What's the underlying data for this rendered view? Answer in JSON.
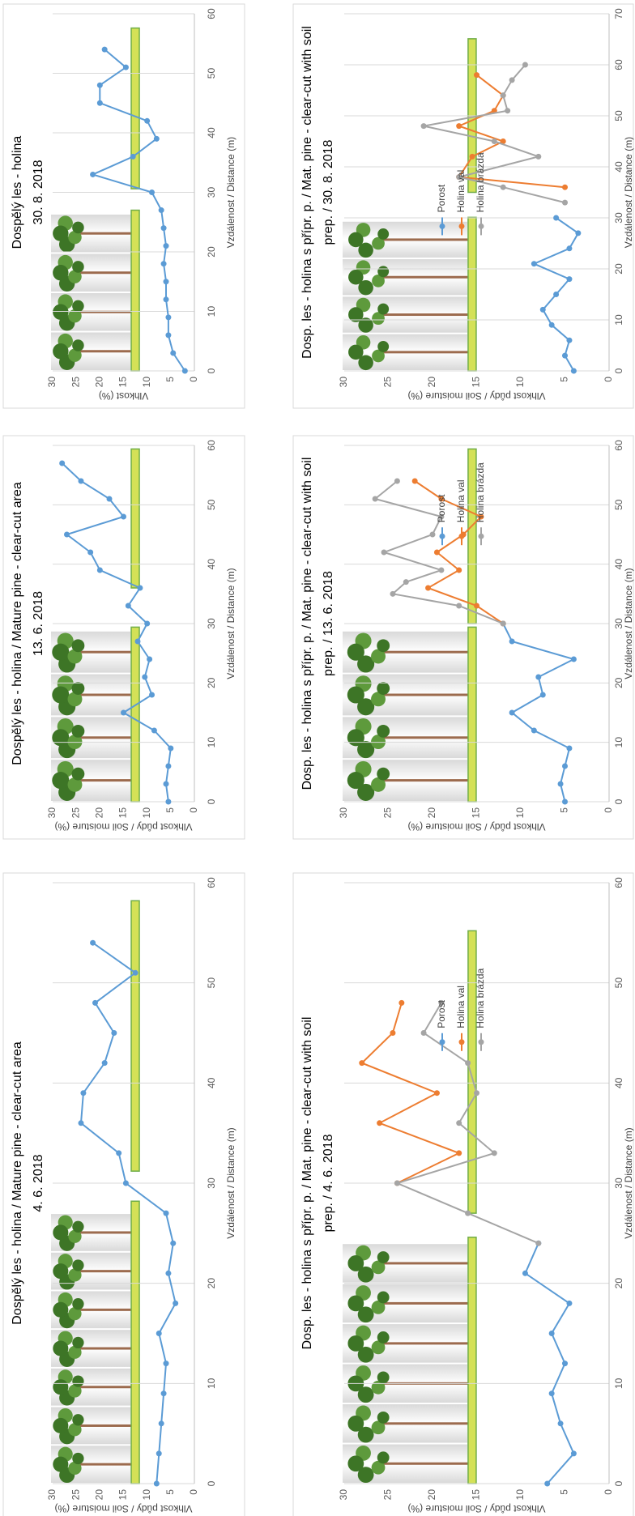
{
  "chart_data": [
    {
      "type": "line",
      "title": [
        "Dospělý les - holina / Mature pine - clear-cut area",
        "4. 6. 2018"
      ],
      "x_label": "Vzdálenost / Distance (m)",
      "y_label": "Vlhkost půdy / Soil moisture (%)",
      "xlim": [
        0,
        60
      ],
      "xticks": [
        0,
        10,
        20,
        30,
        40,
        50,
        60
      ],
      "ylim": [
        0,
        30
      ],
      "yticks": [
        0,
        5,
        10,
        15,
        20,
        25,
        30
      ],
      "grid": "x",
      "series": [
        {
          "color": "#5b9bd5",
          "x": [
            0,
            3,
            6,
            9,
            12,
            15,
            18,
            21,
            24,
            27,
            30,
            33,
            36,
            39,
            42,
            45,
            48,
            51,
            54
          ],
          "values": [
            8,
            7.5,
            7,
            6.5,
            6,
            7.5,
            4,
            5.5,
            4.5,
            6,
            14.5,
            16,
            24,
            23.5,
            19,
            17,
            21,
            12.5,
            21.5
          ]
        }
      ]
    },
    {
      "type": "line",
      "title": [
        "Dospělý les - holina / Mature pine - clear-cut area",
        "13. 6. 2018"
      ],
      "x_label": "Vzdálenost / Distance (m)",
      "y_label": "Vlhkost půdy / Soil moisture (%)",
      "xlim": [
        0,
        60
      ],
      "xticks": [
        0,
        10,
        20,
        30,
        40,
        50,
        60
      ],
      "ylim": [
        0,
        30
      ],
      "yticks": [
        0,
        5,
        10,
        15,
        20,
        25,
        30
      ],
      "grid": "x",
      "series": [
        {
          "color": "#5b9bd5",
          "x": [
            0,
            3,
            6,
            9,
            12,
            15,
            18,
            21,
            24,
            27,
            30,
            33,
            36,
            39,
            42,
            45,
            48,
            51,
            54,
            57
          ],
          "values": [
            5.5,
            6,
            5.5,
            5,
            8.5,
            15,
            9,
            10.5,
            9.5,
            12,
            10,
            14,
            11.5,
            20,
            22,
            27,
            15,
            18,
            24,
            28
          ]
        }
      ]
    },
    {
      "type": "line",
      "title": [
        "Dospělý les - holina",
        "30. 8. 2018"
      ],
      "x_label": "Vzdálenost / Distance (m)",
      "y_label": "Vlhkost (%)",
      "xlim": [
        0,
        60
      ],
      "xticks": [
        0,
        10,
        20,
        30,
        40,
        50,
        60
      ],
      "ylim": [
        0,
        30
      ],
      "yticks": [
        0,
        5,
        10,
        15,
        20,
        25,
        30
      ],
      "grid": "x",
      "series": [
        {
          "color": "#5b9bd5",
          "x": [
            0,
            3,
            6,
            9,
            12,
            15,
            18,
            21,
            24,
            27,
            30,
            33,
            36,
            39,
            42,
            45,
            48,
            51,
            54
          ],
          "values": [
            2,
            4.5,
            5.5,
            5.5,
            6,
            6,
            6.5,
            6,
            6.5,
            7,
            9,
            21.5,
            13,
            8,
            10,
            20,
            20,
            14.5,
            19
          ]
        }
      ]
    },
    {
      "type": "line",
      "title": [
        "Dosp. les - holina s přípr. p. / Mat. pine - clear-cut with soil",
        "prep. / 4. 6. 2018"
      ],
      "x_label": "Vzdálenost / Distance (m)",
      "y_label": "Vlhkost půdy / Soil moisture (%)",
      "xlim": [
        0,
        60
      ],
      "xticks": [
        0,
        10,
        20,
        30,
        40,
        50,
        60
      ],
      "ylim": [
        0,
        30
      ],
      "yticks": [
        0,
        5,
        10,
        15,
        20,
        25,
        30
      ],
      "grid": "x",
      "legend": "right",
      "series": [
        {
          "name": "Porost",
          "color": "#5b9bd5",
          "x": [
            0,
            3,
            6,
            9,
            12,
            15,
            18,
            21,
            24
          ],
          "values": [
            7,
            4,
            5.5,
            6.5,
            5,
            6.5,
            4.5,
            9.5,
            8
          ]
        },
        {
          "name": "Holina val",
          "color": "#ed7d31",
          "x": [
            30,
            33,
            36,
            39,
            42,
            45,
            48
          ],
          "values": [
            24,
            17,
            26,
            19.5,
            28,
            24.5,
            23.5
          ]
        },
        {
          "name": "Holina brázda",
          "color": "#a5a5a5",
          "x": [
            24,
            27,
            30,
            33,
            36,
            39,
            42,
            45,
            48
          ],
          "values": [
            8,
            16,
            24,
            13,
            17,
            15,
            16,
            21,
            19
          ]
        }
      ]
    },
    {
      "type": "line",
      "title": [
        "Dosp. les - holina s přípr. p. / Mat. pine - clear-cut with soil",
        "prep. / 13. 6. 2018"
      ],
      "x_label": "Vzdálenost / Distance (m)",
      "y_label": "Vlhkost půdy / Soil moisture (%)",
      "xlim": [
        0,
        60
      ],
      "xticks": [
        0,
        10,
        20,
        30,
        40,
        50,
        60
      ],
      "ylim": [
        0,
        30
      ],
      "yticks": [
        0,
        5,
        10,
        15,
        20,
        25,
        30
      ],
      "grid": "x",
      "legend": "right",
      "series": [
        {
          "name": "Porost",
          "color": "#5b9bd5",
          "x": [
            0,
            3,
            6,
            9,
            12,
            15,
            18,
            21,
            24,
            27,
            30
          ],
          "values": [
            5,
            5.5,
            5,
            4.5,
            8.5,
            11,
            7.5,
            8,
            4,
            11,
            12
          ]
        },
        {
          "name": "Holina val",
          "color": "#ed7d31",
          "x": [
            30,
            33,
            36,
            39,
            42,
            45,
            48,
            51,
            54
          ],
          "values": [
            12,
            15,
            20.5,
            17,
            19.5,
            16.5,
            14.5,
            19,
            22
          ]
        },
        {
          "name": "Holina brázda",
          "color": "#a5a5a5",
          "x": [
            30,
            33,
            35,
            37,
            39,
            42,
            45,
            48,
            51,
            54
          ],
          "values": [
            12,
            17,
            24.5,
            23,
            19,
            25.5,
            20,
            19,
            26.5,
            24
          ]
        }
      ]
    },
    {
      "type": "line",
      "title": [
        "Dosp. les - holina s přípr. p. / Mat. pine - clear-cut with soil",
        "prep. / 30. 8. 2018"
      ],
      "x_label": "Vzdálenost / Distance (m)",
      "y_label": "Vlhkost půdy / Soil moisture (%)",
      "xlim": [
        0,
        70
      ],
      "xticks": [
        0,
        10,
        20,
        30,
        40,
        50,
        60,
        70
      ],
      "ylim": [
        0,
        30
      ],
      "yticks": [
        0,
        5,
        10,
        15,
        20,
        25,
        30
      ],
      "grid": "x",
      "legend": "center",
      "series": [
        {
          "name": "Porost",
          "color": "#5b9bd5",
          "x": [
            0,
            3,
            6,
            9,
            12,
            15,
            18,
            21,
            24,
            27,
            30
          ],
          "values": [
            4,
            5,
            4.5,
            6.5,
            7.5,
            6,
            4.5,
            8.5,
            4.5,
            3.5,
            6
          ]
        },
        {
          "name": "Holina val",
          "color": "#ed7d31",
          "x": [
            36,
            38,
            42,
            45,
            48,
            51,
            54,
            58
          ],
          "values": [
            5,
            17,
            15.5,
            12,
            17,
            13,
            12,
            15
          ]
        },
        {
          "name": "Holina brázda",
          "color": "#a5a5a5",
          "x": [
            33,
            36,
            38,
            42,
            45,
            48,
            51,
            54,
            57,
            60
          ],
          "values": [
            5,
            12,
            17,
            8,
            13,
            21,
            11.5,
            12,
            11,
            9.5
          ]
        }
      ]
    }
  ]
}
